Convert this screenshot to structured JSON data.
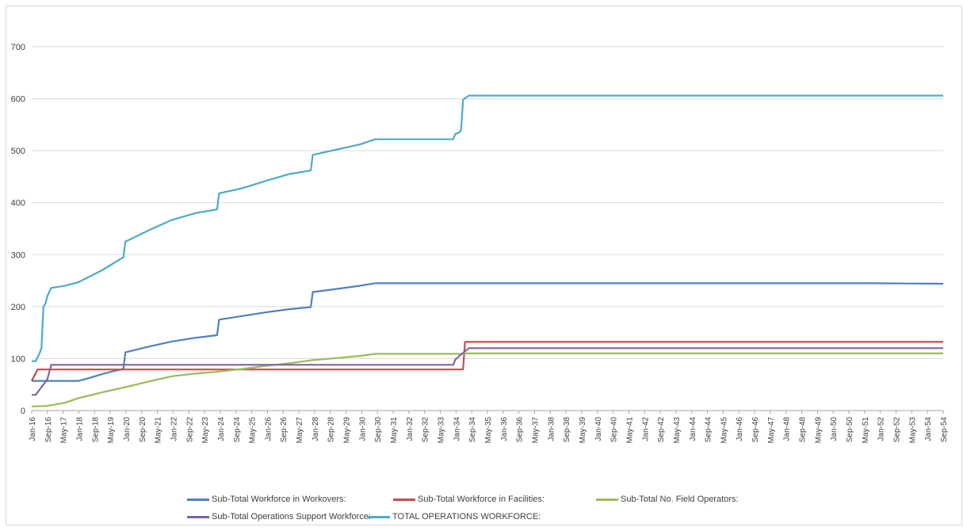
{
  "chart_data": {
    "type": "line",
    "title": "",
    "xlabel": "",
    "ylabel": "",
    "ylim": [
      0,
      700
    ],
    "yticks": [
      "0",
      "100",
      "200",
      "300",
      "400",
      "500",
      "600",
      "700"
    ],
    "grid": true,
    "legend_position": "bottom",
    "x_tick_labels": [
      "Jan-16",
      "Sep-16",
      "May-17",
      "Jan-18",
      "Sep-18",
      "May-19",
      "Jan-20",
      "Sep-20",
      "May-21",
      "Jan-22",
      "Sep-22",
      "May-23",
      "Jan-24",
      "Sep-24",
      "May-25",
      "Jan-26",
      "Sep-26",
      "May-27",
      "Jan-28",
      "Sep-28",
      "May-29",
      "Jan-30",
      "Sep-30",
      "May-31",
      "Jan-32",
      "Sep-32",
      "May-33",
      "Jan-34",
      "Sep-34",
      "May-35",
      "Jan-36",
      "Sep-36",
      "May-37",
      "Jan-38",
      "Sep-38",
      "May-39",
      "Jan-40",
      "Sep-40",
      "May-41",
      "Jan-42",
      "Sep-42",
      "May-43",
      "Jan-44",
      "Sep-44",
      "May-45",
      "Jan-46",
      "Sep-46",
      "May-47",
      "Jan-48",
      "Sep-48",
      "May-49",
      "Jan-50",
      "Sep-50",
      "May-51",
      "Jan-52",
      "Sep-52",
      "May-53",
      "Jan-54",
      "Sep-54"
    ],
    "series": [
      {
        "name": "Sub-Total Workforce in Workovers:",
        "color": "#4f81bd",
        "points": [
          [
            "2016-01",
            57
          ],
          [
            "2018-01",
            57
          ],
          [
            "2018-06",
            62
          ],
          [
            "2019-01",
            70
          ],
          [
            "2019-06",
            75
          ],
          [
            "2019-12",
            80
          ],
          [
            "2020-01",
            112
          ],
          [
            "2021-01",
            123
          ],
          [
            "2022-01",
            133
          ],
          [
            "2023-01",
            140
          ],
          [
            "2023-12",
            145
          ],
          [
            "2024-01",
            175
          ],
          [
            "2025-01",
            182
          ],
          [
            "2026-01",
            189
          ],
          [
            "2027-01",
            195
          ],
          [
            "2027-12",
            199
          ],
          [
            "2028-01",
            228
          ],
          [
            "2029-01",
            234
          ],
          [
            "2030-01",
            240
          ],
          [
            "2030-09",
            245
          ],
          [
            "2052-01",
            245
          ],
          [
            "2054-12",
            244
          ]
        ]
      },
      {
        "name": "Sub-Total Workforce in Facilities:",
        "color": "#c0504d",
        "points": [
          [
            "2016-01",
            57
          ],
          [
            "2016-04",
            79
          ],
          [
            "2018-01",
            79
          ],
          [
            "2034-06",
            79
          ],
          [
            "2034-07",
            132
          ],
          [
            "2054-12",
            132
          ]
        ]
      },
      {
        "name": "Sub-Total No. Field Operators:",
        "color": "#9bbb59",
        "points": [
          [
            "2016-01",
            8
          ],
          [
            "2016-09",
            9
          ],
          [
            "2017-06",
            15
          ],
          [
            "2018-01",
            24
          ],
          [
            "2019-01",
            35
          ],
          [
            "2020-01",
            45
          ],
          [
            "2021-01",
            56
          ],
          [
            "2022-01",
            66
          ],
          [
            "2023-01",
            71
          ],
          [
            "2024-01",
            75
          ],
          [
            "2025-01",
            80
          ],
          [
            "2026-01",
            86
          ],
          [
            "2027-01",
            91
          ],
          [
            "2028-01",
            97
          ],
          [
            "2029-01",
            101
          ],
          [
            "2030-01",
            105
          ],
          [
            "2030-09",
            109
          ],
          [
            "2034-06",
            109
          ],
          [
            "2034-08",
            110
          ],
          [
            "2054-12",
            110
          ]
        ]
      },
      {
        "name": "Sub-Total Operations Support Workforce:",
        "color": "#8064a2",
        "points": [
          [
            "2016-01",
            30
          ],
          [
            "2016-03",
            30
          ],
          [
            "2016-06",
            45
          ],
          [
            "2016-09",
            60
          ],
          [
            "2016-11",
            88
          ],
          [
            "2018-01",
            88
          ],
          [
            "2034-01",
            88
          ],
          [
            "2034-02",
            98
          ],
          [
            "2034-05",
            108
          ],
          [
            "2034-09",
            120
          ],
          [
            "2054-12",
            120
          ]
        ]
      },
      {
        "name": "TOTAL OPERATIONS WORKFORCE:",
        "color": "#4bacc6",
        "points": [
          [
            "2016-01",
            95
          ],
          [
            "2016-03",
            95
          ],
          [
            "2016-05",
            110
          ],
          [
            "2016-06",
            120
          ],
          [
            "2016-07",
            200
          ],
          [
            "2016-08",
            205
          ],
          [
            "2016-09",
            220
          ],
          [
            "2016-11",
            236
          ],
          [
            "2017-06",
            240
          ],
          [
            "2018-01",
            247
          ],
          [
            "2019-01",
            270
          ],
          [
            "2019-12",
            295
          ],
          [
            "2020-01",
            325
          ],
          [
            "2021-01",
            347
          ],
          [
            "2022-01",
            367
          ],
          [
            "2023-01",
            380
          ],
          [
            "2023-12",
            387
          ],
          [
            "2024-01",
            418
          ],
          [
            "2025-01",
            428
          ],
          [
            "2026-01",
            442
          ],
          [
            "2027-01",
            455
          ],
          [
            "2027-12",
            462
          ],
          [
            "2028-01",
            492
          ],
          [
            "2029-01",
            502
          ],
          [
            "2030-01",
            512
          ],
          [
            "2030-09",
            522
          ],
          [
            "2034-01",
            522
          ],
          [
            "2034-02",
            532
          ],
          [
            "2034-04",
            535
          ],
          [
            "2034-05",
            540
          ],
          [
            "2034-06",
            598
          ],
          [
            "2034-09",
            606
          ],
          [
            "2054-12",
            606
          ]
        ]
      }
    ]
  }
}
